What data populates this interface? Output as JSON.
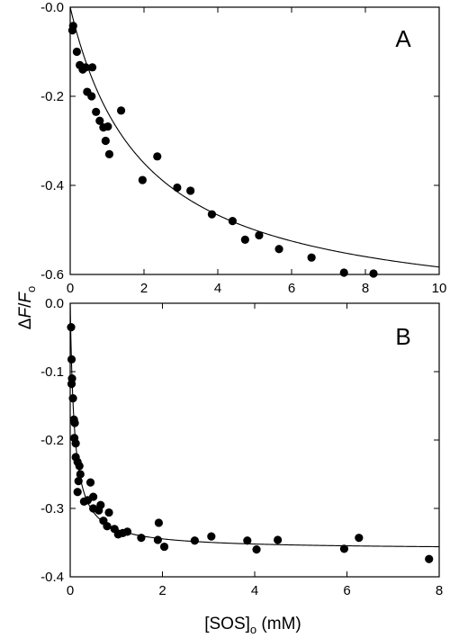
{
  "chart_data": [
    {
      "type": "scatter",
      "panel_label": "A",
      "xlim": [
        0,
        10
      ],
      "ylim": [
        -0.6,
        0.0
      ],
      "xticks": [
        0,
        2,
        4,
        6,
        8,
        10
      ],
      "xtick_labels": [
        "0",
        "2",
        "4",
        "6",
        "8",
        "10"
      ],
      "yticks": [
        0.0,
        -0.2,
        -0.4,
        -0.6
      ],
      "ytick_labels": [
        "-0.0",
        "-0.2",
        "-0.4",
        "-0.6"
      ],
      "grid": false,
      "points": [
        [
          0.06,
          -0.052
        ],
        [
          0.08,
          -0.042
        ],
        [
          0.18,
          -0.1
        ],
        [
          0.26,
          -0.13
        ],
        [
          0.34,
          -0.14
        ],
        [
          0.42,
          -0.135
        ],
        [
          0.46,
          -0.19
        ],
        [
          0.58,
          -0.2
        ],
        [
          0.6,
          -0.135
        ],
        [
          0.7,
          -0.235
        ],
        [
          0.8,
          -0.255
        ],
        [
          0.9,
          -0.27
        ],
        [
          0.96,
          -0.3
        ],
        [
          1.02,
          -0.268
        ],
        [
          1.06,
          -0.33
        ],
        [
          1.38,
          -0.232
        ],
        [
          1.96,
          -0.388
        ],
        [
          2.36,
          -0.335
        ],
        [
          2.9,
          -0.405
        ],
        [
          3.26,
          -0.412
        ],
        [
          3.84,
          -0.465
        ],
        [
          4.4,
          -0.48
        ],
        [
          4.74,
          -0.522
        ],
        [
          5.12,
          -0.512
        ],
        [
          5.66,
          -0.543
        ],
        [
          6.54,
          -0.562
        ],
        [
          7.42,
          -0.596
        ],
        [
          8.22,
          -0.598
        ]
      ],
      "fit": {
        "model": "hyperbolic",
        "amplitude": -0.7,
        "k": 2.0
      }
    },
    {
      "type": "scatter",
      "panel_label": "B",
      "xlim": [
        0,
        8
      ],
      "ylim": [
        -0.4,
        0.0
      ],
      "xticks": [
        0,
        2,
        4,
        6,
        8
      ],
      "xtick_labels": [
        "0",
        "2",
        "4",
        "6",
        "8"
      ],
      "yticks": [
        0.0,
        -0.1,
        -0.2,
        -0.3,
        -0.4
      ],
      "ytick_labels": [
        "0.0",
        "-0.1",
        "-0.2",
        "-0.3",
        "-0.4"
      ],
      "grid": false,
      "points": [
        [
          0.02,
          -0.035
        ],
        [
          0.03,
          -0.082
        ],
        [
          0.04,
          -0.11
        ],
        [
          0.03,
          -0.118
        ],
        [
          0.06,
          -0.139
        ],
        [
          0.08,
          -0.17
        ],
        [
          0.1,
          -0.175
        ],
        [
          0.09,
          -0.197
        ],
        [
          0.12,
          -0.205
        ],
        [
          0.12,
          -0.225
        ],
        [
          0.16,
          -0.232
        ],
        [
          0.2,
          -0.238
        ],
        [
          0.18,
          -0.26
        ],
        [
          0.22,
          -0.25
        ],
        [
          0.16,
          -0.276
        ],
        [
          0.3,
          -0.29
        ],
        [
          0.38,
          -0.288
        ],
        [
          0.44,
          -0.262
        ],
        [
          0.5,
          -0.3
        ],
        [
          0.5,
          -0.283
        ],
        [
          0.62,
          -0.303
        ],
        [
          0.66,
          -0.295
        ],
        [
          0.72,
          -0.318
        ],
        [
          0.8,
          -0.326
        ],
        [
          0.84,
          -0.306
        ],
        [
          0.96,
          -0.33
        ],
        [
          1.04,
          -0.338
        ],
        [
          1.14,
          -0.336
        ],
        [
          1.24,
          -0.334
        ],
        [
          1.54,
          -0.343
        ],
        [
          1.9,
          -0.346
        ],
        [
          1.92,
          -0.321
        ],
        [
          2.04,
          -0.356
        ],
        [
          2.7,
          -0.347
        ],
        [
          3.06,
          -0.341
        ],
        [
          3.84,
          -0.347
        ],
        [
          4.04,
          -0.36
        ],
        [
          4.5,
          -0.346
        ],
        [
          5.94,
          -0.359
        ],
        [
          6.26,
          -0.343
        ],
        [
          7.78,
          -0.374
        ]
      ],
      "fit": {
        "model": "hyperbolic",
        "amplitude": -0.36,
        "k": 0.09
      }
    }
  ],
  "labels": {
    "ylabel_delta": "Δ",
    "ylabel_F": "F",
    "ylabel_slash": "/",
    "ylabel_F2": "F",
    "ylabel_sub": "o",
    "xlabel_main": "[SOS]",
    "xlabel_sub": "o",
    "xlabel_unit": " (mM)"
  }
}
